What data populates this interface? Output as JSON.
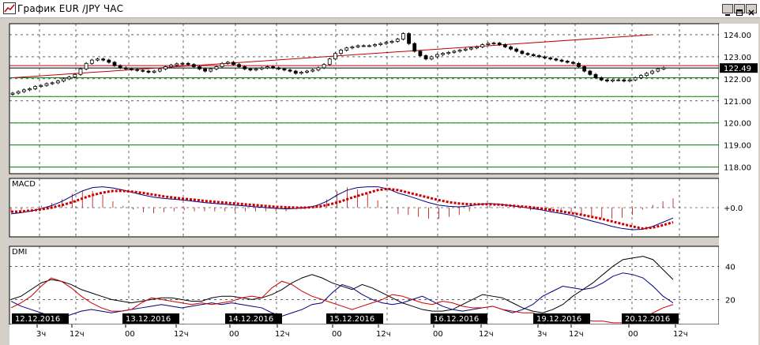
{
  "window": {
    "title": "График EUR /JPY ЧАС",
    "controls": [
      "minimize",
      "maximize",
      "close"
    ]
  },
  "chart_data": [
    {
      "type": "candlestick",
      "name": "EUR/JPY price",
      "timeframe": "1h",
      "ylim": [
        117.7,
        124.5
      ],
      "y_ticks": [
        118.0,
        119.0,
        120.0,
        121.0,
        122.0,
        123.0,
        124.0
      ],
      "y_tick_labels": [
        "118.00",
        "119.00",
        "120.00",
        "121.00",
        "122.00",
        "123.00",
        "124.00"
      ],
      "current_price": 122.49,
      "current_price_label": "122.49",
      "grid": true,
      "close_approx": [
        121.35,
        121.42,
        121.5,
        121.55,
        121.65,
        121.7,
        121.78,
        121.82,
        121.9,
        122.0,
        122.08,
        122.2,
        122.45,
        122.7,
        122.85,
        122.9,
        122.85,
        122.75,
        122.6,
        122.5,
        122.45,
        122.42,
        122.38,
        122.35,
        122.3,
        122.35,
        122.45,
        122.55,
        122.62,
        122.68,
        122.7,
        122.65,
        122.55,
        122.45,
        122.35,
        122.45,
        122.55,
        122.7,
        122.75,
        122.65,
        122.55,
        122.45,
        122.4,
        122.45,
        122.5,
        122.55,
        122.5,
        122.45,
        122.4,
        122.35,
        122.25,
        122.3,
        122.35,
        122.4,
        122.5,
        122.65,
        122.9,
        123.15,
        123.3,
        123.4,
        123.45,
        123.5,
        123.5,
        123.5,
        123.55,
        123.6,
        123.65,
        123.7,
        123.8,
        124.05,
        123.6,
        123.25,
        123.05,
        122.9,
        123.0,
        123.1,
        123.15,
        123.2,
        123.25,
        123.3,
        123.35,
        123.4,
        123.45,
        123.55,
        123.6,
        123.62,
        123.55,
        123.45,
        123.35,
        123.25,
        123.15,
        123.1,
        123.05,
        123.0,
        122.95,
        122.9,
        122.85,
        122.8,
        122.75,
        122.7,
        122.55,
        122.35,
        122.2,
        122.05,
        121.95,
        121.9,
        121.95,
        121.95,
        121.9,
        121.95,
        122.05,
        122.15,
        122.25,
        122.35,
        122.45,
        122.5
      ],
      "lines": [
        {
          "kind": "trend",
          "color": "#c00000",
          "from": [
            0,
            122.05
          ],
          "to": [
            113,
            124.0
          ]
        },
        {
          "kind": "horizontal",
          "color": "#c00000",
          "y": 122.6
        },
        {
          "kind": "horizontal",
          "color": "#000000",
          "y": 122.49
        },
        {
          "kind": "horizontal",
          "color": "#008000",
          "y": 122.05
        },
        {
          "kind": "horizontal",
          "color": "#008000",
          "y": 121.2
        },
        {
          "kind": "horizontal",
          "color": "#008000",
          "y": 120.0
        },
        {
          "kind": "horizontal",
          "color": "#008000",
          "y": 119.0
        },
        {
          "kind": "horizontal",
          "color": "#008000",
          "y": 118.0
        }
      ]
    },
    {
      "type": "line",
      "name": "MACD",
      "label": "MACD",
      "zero_label": "+0.0",
      "series": [
        {
          "name": "macd",
          "color": "#000080",
          "style": "line",
          "values": [
            -0.15,
            -0.12,
            -0.08,
            -0.02,
            0.05,
            0.15,
            0.28,
            0.4,
            0.48,
            0.5,
            0.47,
            0.42,
            0.36,
            0.3,
            0.25,
            0.22,
            0.2,
            0.18,
            0.15,
            0.12,
            0.1,
            0.08,
            0.06,
            0.04,
            0.02,
            0.0,
            -0.02,
            -0.03,
            -0.02,
            0.0,
            0.05,
            0.15,
            0.3,
            0.42,
            0.48,
            0.5,
            0.5,
            0.45,
            0.35,
            0.28,
            0.2,
            0.12,
            0.06,
            0.03,
            0.02,
            0.04,
            0.08,
            0.1,
            0.08,
            0.05,
            0.02,
            -0.02,
            -0.05,
            -0.1,
            -0.14,
            -0.18,
            -0.25,
            -0.32,
            -0.38,
            -0.45,
            -0.5,
            -0.53,
            -0.52,
            -0.45,
            -0.35,
            -0.25
          ]
        },
        {
          "name": "signal",
          "color": "#cc0000",
          "style": "dotted",
          "values": [
            -0.1,
            -0.09,
            -0.07,
            -0.04,
            0.0,
            0.06,
            0.13,
            0.22,
            0.3,
            0.36,
            0.4,
            0.4,
            0.38,
            0.35,
            0.31,
            0.27,
            0.24,
            0.21,
            0.19,
            0.16,
            0.14,
            0.12,
            0.1,
            0.08,
            0.06,
            0.04,
            0.02,
            0.01,
            0.0,
            0.0,
            0.02,
            0.06,
            0.12,
            0.2,
            0.28,
            0.35,
            0.42,
            0.45,
            0.42,
            0.36,
            0.3,
            0.24,
            0.18,
            0.13,
            0.1,
            0.08,
            0.08,
            0.08,
            0.07,
            0.05,
            0.03,
            0.01,
            -0.02,
            -0.05,
            -0.09,
            -0.13,
            -0.17,
            -0.22,
            -0.27,
            -0.33,
            -0.39,
            -0.45,
            -0.5,
            -0.48,
            -0.42,
            -0.35
          ]
        }
      ]
    },
    {
      "type": "line",
      "name": "DMI",
      "label": "DMI",
      "ylim": [
        5,
        52
      ],
      "y_ticks": [
        20,
        40
      ],
      "y_tick_labels": [
        "20",
        "40"
      ],
      "series": [
        {
          "name": "adx",
          "color": "#000000",
          "values": [
            20,
            22,
            26,
            30,
            32,
            31,
            29,
            26,
            24,
            22,
            20,
            19,
            18,
            19,
            20,
            21,
            21,
            20,
            19,
            19,
            21,
            22,
            22,
            21,
            20,
            21,
            23,
            26,
            30,
            33,
            35,
            33,
            30,
            28,
            26,
            29,
            27,
            24,
            21,
            18,
            16,
            14,
            13,
            13,
            14,
            17,
            20,
            23,
            22,
            21,
            18,
            15,
            13,
            12,
            14,
            17,
            22,
            26,
            30,
            35,
            40,
            44,
            45,
            46,
            44,
            38,
            32
          ]
        },
        {
          "name": "plus_di",
          "color": "#000080",
          "values": [
            19,
            16,
            14,
            12,
            10,
            9,
            11,
            13,
            14,
            13,
            12,
            13,
            14,
            15,
            16,
            17,
            16,
            15,
            16,
            17,
            18,
            17,
            18,
            17,
            16,
            15,
            12,
            10,
            12,
            14,
            17,
            18,
            24,
            29,
            27,
            23,
            20,
            18,
            17,
            18,
            20,
            22,
            19,
            16,
            14,
            13,
            14,
            15,
            16,
            14,
            12,
            14,
            17,
            22,
            25,
            28,
            27,
            26,
            27,
            30,
            34,
            36,
            35,
            33,
            28,
            22,
            18
          ]
        },
        {
          "name": "minus_di",
          "color": "#cc0000",
          "values": [
            15,
            18,
            22,
            28,
            33,
            31,
            27,
            22,
            18,
            15,
            13,
            13,
            14,
            18,
            21,
            20,
            19,
            18,
            17,
            18,
            17,
            18,
            19,
            21,
            22,
            21,
            27,
            31,
            29,
            25,
            22,
            20,
            18,
            16,
            14,
            16,
            18,
            20,
            23,
            22,
            20,
            18,
            17,
            19,
            18,
            16,
            15,
            15,
            16,
            14,
            13,
            12,
            12,
            10,
            9,
            9,
            8,
            8,
            7,
            7,
            6,
            6,
            7,
            9,
            12,
            15,
            17
          ]
        }
      ]
    }
  ],
  "x_axis": {
    "date_labels": [
      "12.12.2016",
      "13.12.2016",
      "14.12.2016",
      "15.12.2016",
      "16.12.2016",
      "19.12.2016",
      "20.12.2016"
    ],
    "hour_labels": [
      "3ч",
      "12ч",
      "00",
      "12ч",
      "00",
      "12ч",
      "00",
      "12ч",
      "00",
      "12ч",
      "3ч",
      "12ч",
      "00",
      "12ч"
    ]
  },
  "colors": {
    "background": "#ffffff",
    "frame": "#000000",
    "grid": "#000000",
    "up_candle": "#ffffff",
    "down_candle": "#000000",
    "red": "#c00000",
    "green": "#008000",
    "navy": "#000080"
  }
}
